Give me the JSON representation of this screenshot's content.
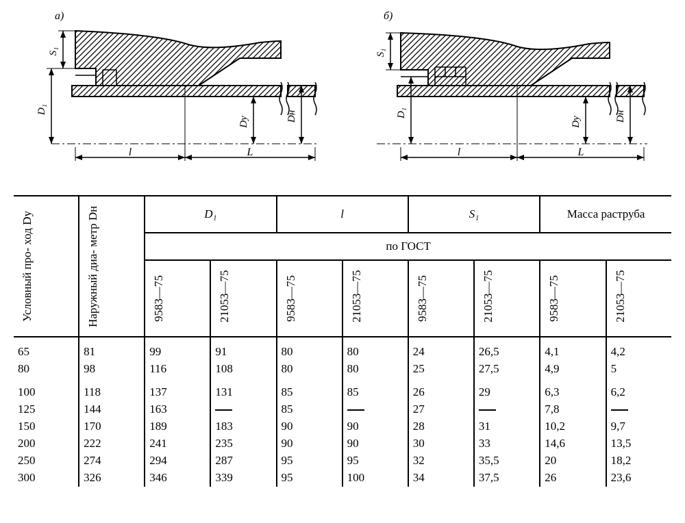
{
  "diagrams": {
    "left_label": "а)",
    "right_label": "б)",
    "dims": {
      "S1": "S₁",
      "D1": "D₁",
      "Dy": "Dу",
      "DH": "Dн",
      "l": "l",
      "L": "L"
    }
  },
  "table": {
    "headers": {
      "col1": "Условный про-\nход Dу",
      "col2": "Наружный диа-\nметр Dн",
      "D1": "D₁",
      "l": "l",
      "S1": "S₁",
      "mass": "Масса раструба",
      "poGOST": "по ГОСТ",
      "g9583": "9583—75",
      "g21053": "21053—75"
    },
    "rows": [
      {
        "dy": "65",
        "dn": "81",
        "d1a": "99",
        "d1b": "91",
        "la": "80",
        "lb": "80",
        "s1a": "24",
        "s1b": "26,5",
        "ma": "4,1",
        "mb": "4,2"
      },
      {
        "dy": "80",
        "dn": "98",
        "d1a": "116",
        "d1b": "108",
        "la": "80",
        "lb": "80",
        "s1a": "25",
        "s1b": "27,5",
        "ma": "4,9",
        "mb": "5"
      },
      {
        "dy": "100",
        "dn": "118",
        "d1a": "137",
        "d1b": "131",
        "la": "85",
        "lb": "85",
        "s1a": "26",
        "s1b": "29",
        "ma": "6,3",
        "mb": "6,2"
      },
      {
        "dy": "125",
        "dn": "144",
        "d1a": "163",
        "d1b": "—",
        "la": "85",
        "lb": "—",
        "s1a": "27",
        "s1b": "—",
        "ma": "7,8",
        "mb": "—"
      },
      {
        "dy": "150",
        "dn": "170",
        "d1a": "189",
        "d1b": "183",
        "la": "90",
        "lb": "90",
        "s1a": "28",
        "s1b": "31",
        "ma": "10,2",
        "mb": "9,7"
      },
      {
        "dy": "200",
        "dn": "222",
        "d1a": "241",
        "d1b": "235",
        "la": "90",
        "lb": "90",
        "s1a": "30",
        "s1b": "33",
        "ma": "14,6",
        "mb": "13,5"
      },
      {
        "dy": "250",
        "dn": "274",
        "d1a": "294",
        "d1b": "287",
        "la": "95",
        "lb": "95",
        "s1a": "32",
        "s1b": "35,5",
        "ma": "20",
        "mb": "18,2"
      },
      {
        "dy": "300",
        "dn": "326",
        "d1a": "346",
        "d1b": "339",
        "la": "95",
        "lb": "100",
        "s1a": "34",
        "s1b": "37,5",
        "ma": "26",
        "mb": "23,6"
      }
    ]
  },
  "style": {
    "stroke": "#000000",
    "hatch_spacing": 6
  }
}
